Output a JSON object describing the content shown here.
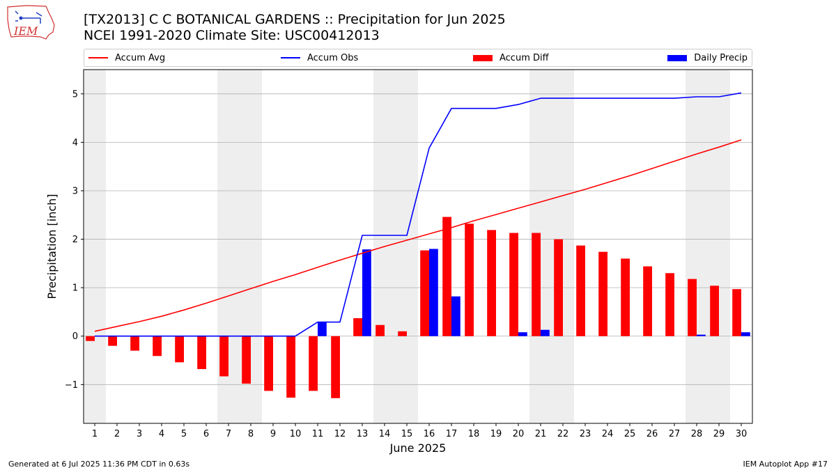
{
  "header": {
    "title_line1": "[TX2013] C C BOTANICAL GARDENS :: Precipitation for Jun 2025",
    "title_line2": "NCEI 1991-2020 Climate Site: USC00412013",
    "logo_text": "IEM"
  },
  "footer": {
    "left": "Generated at 6 Jul 2025 11:36 PM CDT in 0.63s",
    "right": "IEM Autoplot App #17"
  },
  "chart_data": {
    "type": "bar",
    "xlabel": "June 2025",
    "ylabel": "Precipitation [inch]",
    "ylim": [
      -1.8,
      5.5
    ],
    "yticks": [
      -1,
      0,
      1,
      2,
      3,
      4,
      5
    ],
    "ytick_labels": [
      "−1",
      "0",
      "1",
      "2",
      "3",
      "4",
      "5"
    ],
    "grid": "horizontal",
    "legend_position": "top, above plot",
    "weekend_shading_color": "#eeeeee",
    "weekend_days": [
      1,
      7,
      8,
      14,
      15,
      21,
      22,
      28,
      29
    ],
    "categories": [
      "1",
      "2",
      "3",
      "4",
      "5",
      "6",
      "7",
      "8",
      "9",
      "10",
      "11",
      "12",
      "13",
      "14",
      "15",
      "16",
      "17",
      "18",
      "19",
      "20",
      "21",
      "22",
      "23",
      "24",
      "25",
      "26",
      "27",
      "28",
      "29",
      "30"
    ],
    "series": [
      {
        "name": "Accum Avg",
        "kind": "line",
        "color": "#ff0000",
        "values": [
          0.1,
          0.2,
          0.3,
          0.41,
          0.54,
          0.68,
          0.83,
          0.98,
          1.13,
          1.27,
          1.42,
          1.57,
          1.71,
          1.85,
          1.98,
          2.11,
          2.24,
          2.38,
          2.51,
          2.64,
          2.77,
          2.9,
          3.03,
          3.17,
          3.31,
          3.46,
          3.61,
          3.76,
          3.9,
          4.05
        ]
      },
      {
        "name": "Accum Obs",
        "kind": "line",
        "color": "#0000ff",
        "values": [
          0.0,
          0.0,
          0.0,
          0.0,
          0.0,
          0.0,
          0.0,
          0.0,
          0.0,
          0.0,
          0.29,
          0.29,
          2.08,
          2.08,
          2.08,
          3.88,
          4.7,
          4.7,
          4.7,
          4.78,
          4.91,
          4.91,
          4.91,
          4.91,
          4.91,
          4.91,
          4.91,
          4.94,
          4.94,
          5.02
        ]
      },
      {
        "name": "Accum Diff",
        "kind": "bar",
        "color": "#ff0000",
        "values": [
          -0.1,
          -0.2,
          -0.3,
          -0.41,
          -0.54,
          -0.68,
          -0.83,
          -0.98,
          -1.13,
          -1.27,
          -1.13,
          -1.28,
          0.37,
          0.23,
          0.1,
          1.77,
          2.46,
          2.32,
          2.19,
          2.13,
          2.13,
          2.0,
          1.87,
          1.74,
          1.6,
          1.44,
          1.3,
          1.18,
          1.04,
          0.97
        ]
      },
      {
        "name": "Daily Precip",
        "kind": "bar",
        "color": "#0000ff",
        "values": [
          0,
          0,
          0,
          0,
          0,
          0,
          0,
          0,
          0,
          0,
          0.29,
          0,
          1.79,
          0,
          0,
          1.8,
          0.82,
          0,
          0,
          0.08,
          0.13,
          0,
          0,
          0,
          0,
          0,
          0,
          0.03,
          0,
          0.08
        ]
      }
    ]
  }
}
